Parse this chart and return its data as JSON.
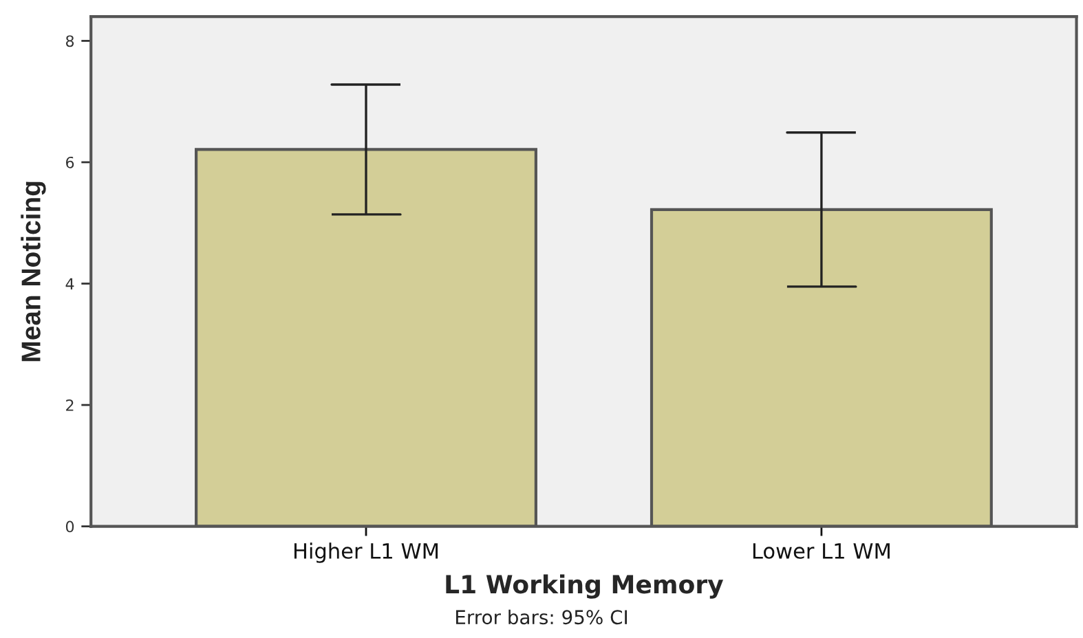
{
  "chart_data": {
    "type": "bar",
    "categories": [
      "Higher L1 WM",
      "Lower L1 WM"
    ],
    "values": [
      6.21,
      5.22
    ],
    "errors": [
      1.07,
      1.27
    ],
    "color": "#d3ce97",
    "xlabel": "L1 Working Memory",
    "ylabel": "Mean Noticing",
    "annotations": [
      "Error bars: 95% CI"
    ],
    "ylim": [
      0,
      8.4
    ],
    "yticks": [
      0,
      2,
      4,
      6,
      8
    ],
    "grid": false,
    "legend": false
  }
}
